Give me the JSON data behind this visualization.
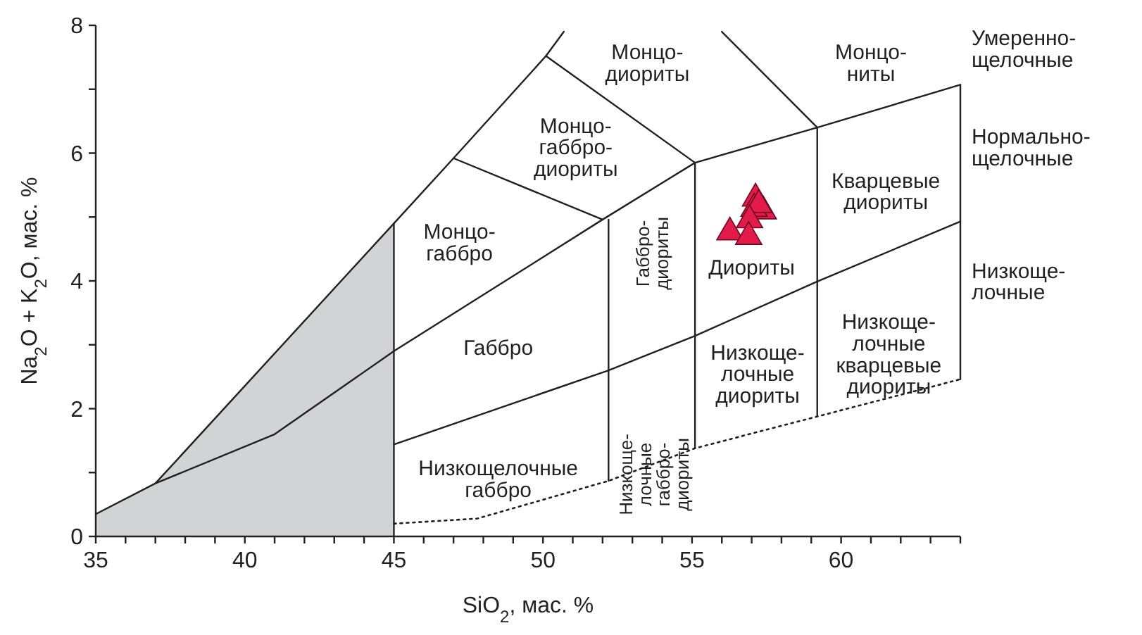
{
  "chart_data": {
    "type": "scatter",
    "xlabel": "SiO$_{2}$, мас. %",
    "ylabel": "Na$_{2}$O + K$_{2}$O, мас. %",
    "xlim": [
      35,
      64
    ],
    "ylim": [
      0,
      8
    ],
    "xticks": [
      35,
      {
        "value": 36,
        "label": null
      },
      {
        "value": 37,
        "label": null
      },
      {
        "value": 38,
        "label": null
      },
      {
        "value": 39,
        "label": null
      },
      40,
      {
        "value": 41,
        "label": null
      },
      {
        "value": 42,
        "label": null
      },
      {
        "value": 43,
        "label": null
      },
      {
        "value": 44,
        "label": null
      },
      45,
      {
        "value": 46,
        "label": null
      },
      {
        "value": 47,
        "label": null
      },
      {
        "value": 48,
        "label": null
      },
      {
        "value": 49,
        "label": null
      },
      50,
      {
        "value": 51,
        "label": null
      },
      {
        "value": 52,
        "label": null
      },
      {
        "value": 53,
        "label": null
      },
      {
        "value": 54,
        "label": null
      },
      55,
      {
        "value": 56,
        "label": null
      },
      {
        "value": 57,
        "label": null
      },
      {
        "value": 58,
        "label": null
      },
      {
        "value": 59,
        "label": null
      },
      60,
      {
        "value": 61,
        "label": null
      },
      {
        "value": 62,
        "label": null
      },
      {
        "value": 63,
        "label": null
      },
      {
        "value": 64,
        "label": null
      }
    ],
    "yticks": [
      0,
      {
        "value": 1,
        "label": null
      },
      2,
      {
        "value": 3,
        "label": null
      },
      4,
      {
        "value": 5,
        "label": null
      },
      6,
      {
        "value": 7,
        "label": null
      },
      8
    ],
    "grid": false,
    "series": [
      {
        "type": "area",
        "color": "#d1d3d4",
        "x": [
          35,
          37,
          45
        ],
        "values": [
          0.35,
          0.83,
          4.9
        ]
      },
      {
        "type": "line",
        "color": "#231f20",
        "line_style": "solid",
        "marker": "none",
        "x": [
          35,
          37,
          41,
          45,
          52,
          55.1,
          59.2,
          64
        ],
        "values": [
          0.35,
          0.83,
          1.6,
          2.9,
          4.96,
          5.85,
          6.4,
          7.07
        ]
      },
      {
        "type": "line",
        "color": "#231f20",
        "line_style": "solid",
        "marker": "none",
        "x": [
          37,
          45,
          47,
          50.1,
          50.7
        ],
        "values": [
          0.83,
          4.9,
          5.92,
          7.52,
          7.9
        ]
      },
      {
        "type": "line",
        "color": "#231f20",
        "line_style": "solid",
        "marker": "none",
        "x": [
          47,
          52
        ],
        "values": [
          5.92,
          4.96
        ]
      },
      {
        "type": "line",
        "color": "#231f20",
        "line_style": "solid",
        "marker": "none",
        "x": [
          50.1,
          55.1
        ],
        "values": [
          7.52,
          5.85
        ]
      },
      {
        "type": "line",
        "color": "#231f20",
        "line_style": "solid",
        "marker": "none",
        "x": [
          56,
          59.2
        ],
        "values": [
          7.9,
          6.4
        ]
      },
      {
        "type": "line",
        "color": "#231f20",
        "line_style": "solid",
        "marker": "none",
        "x": [
          45,
          52.2,
          55.1,
          59.2,
          64
        ],
        "values": [
          1.44,
          2.6,
          3.14,
          3.99,
          4.93
        ]
      },
      {
        "type": "line",
        "color": "#231f20",
        "line_style": "dotted",
        "marker": "none",
        "x": [
          45,
          47.8,
          52.2,
          55.1,
          64
        ],
        "values": [
          0.2,
          0.28,
          0.87,
          1.38,
          2.46
        ]
      },
      {
        "type": "line",
        "color": "#231f20",
        "line_style": "solid",
        "marker": "none",
        "x": [
          45,
          45
        ],
        "values": [
          0,
          4.9
        ]
      },
      {
        "type": "line",
        "color": "#231f20",
        "line_style": "solid",
        "marker": "none",
        "x": [
          52.2,
          52.2
        ],
        "values": [
          0.87,
          4.96
        ]
      },
      {
        "type": "line",
        "color": "#231f20",
        "line_style": "solid",
        "marker": "none",
        "x": [
          55.1,
          55.1
        ],
        "values": [
          1.38,
          5.85
        ]
      },
      {
        "type": "line",
        "color": "#231f20",
        "line_style": "solid",
        "marker": "none",
        "x": [
          59.2,
          59.2
        ],
        "values": [
          1.88,
          6.4
        ]
      },
      {
        "type": "line",
        "color": "#231f20",
        "line_style": "solid",
        "marker": "none",
        "x": [
          64,
          64
        ],
        "values": [
          2.46,
          7.07
        ]
      },
      {
        "color": "#e31b4b",
        "marker": "triangle",
        "x": [
          57.13,
          57.39,
          57.08,
          57.24,
          56.93,
          56.27,
          56.9
        ],
        "values": [
          5.29,
          5.09,
          5.13,
          5.19,
          4.95,
          4.76,
          4.69
        ]
      }
    ],
    "annotations": [
      "Монцо-\nдиориты",
      "Монцо-\nниты",
      "Монцо-\nгаббро-\nдиориты",
      "Монцо-\nгаббро",
      "Габбро",
      "Низкощелочные\nгаббро",
      "Габбро-\nдиориты",
      "Низкоще-\nлочные\nгаббро-\nдиориты",
      "Диориты",
      "Кварцевые\nдиориты",
      "Низкоще-\nлочные\nдиориты",
      "Низкоще-\nлочные\nкварцевые\nдиориты",
      "Умеренно-\nщелочные",
      "Нормально-\nщелочные",
      "Низкоще-\nлочные"
    ]
  }
}
